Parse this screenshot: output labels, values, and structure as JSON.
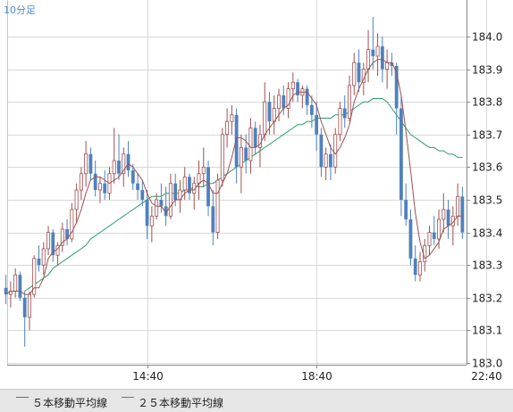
{
  "interval_label": "10分足",
  "legend": [
    {
      "label": "５本移動平均線",
      "color": "#a05050"
    },
    {
      "label": "２５本移動平均線",
      "color": "#2a9d6e"
    }
  ],
  "colors": {
    "up": "#a05050",
    "down": "#4f81bd",
    "grid": "#d8d8d8",
    "axis": "#888888",
    "text": "#222222",
    "ma5": "#a05050",
    "ma25": "#2a9d6e"
  },
  "chart_data": {
    "type": "candlestick",
    "ylim": [
      183.0,
      184.1
    ],
    "y_ticks": [
      "183.0",
      "183.1",
      "183.2",
      "183.3",
      "183.4",
      "183.5",
      "183.6",
      "183.7",
      "183.8",
      "183.9",
      "184.0"
    ],
    "x_ticks": [
      {
        "label": "14:40",
        "index": 30
      },
      {
        "label": "18:40",
        "index": 66
      },
      {
        "label": "22:40",
        "index": 102
      }
    ],
    "candles": [
      [
        183.23,
        183.27,
        183.18,
        183.21
      ],
      [
        183.21,
        183.25,
        183.17,
        183.22
      ],
      [
        183.22,
        183.29,
        183.2,
        183.27
      ],
      [
        183.27,
        183.28,
        183.19,
        183.2
      ],
      [
        183.2,
        183.22,
        183.05,
        183.14
      ],
      [
        183.14,
        183.22,
        183.1,
        183.21
      ],
      [
        183.21,
        183.33,
        183.2,
        183.32
      ],
      [
        183.32,
        183.36,
        183.28,
        183.3
      ],
      [
        183.3,
        183.37,
        183.27,
        183.35
      ],
      [
        183.35,
        183.42,
        183.33,
        183.4
      ],
      [
        183.4,
        183.41,
        183.31,
        183.33
      ],
      [
        183.33,
        183.37,
        183.3,
        183.36
      ],
      [
        183.36,
        183.43,
        183.34,
        183.41
      ],
      [
        183.41,
        183.44,
        183.36,
        183.38
      ],
      [
        183.38,
        183.49,
        183.37,
        183.47
      ],
      [
        183.47,
        183.55,
        183.43,
        183.53
      ],
      [
        183.53,
        183.6,
        183.5,
        183.58
      ],
      [
        183.58,
        183.68,
        183.54,
        183.64
      ],
      [
        183.64,
        183.66,
        183.56,
        183.58
      ],
      [
        183.58,
        183.62,
        183.51,
        183.53
      ],
      [
        183.53,
        183.57,
        183.49,
        183.55
      ],
      [
        183.55,
        183.59,
        183.5,
        183.52
      ],
      [
        183.52,
        183.6,
        183.5,
        183.58
      ],
      [
        183.58,
        183.72,
        183.55,
        183.62
      ],
      [
        183.62,
        183.7,
        183.56,
        183.58
      ],
      [
        183.58,
        183.66,
        183.54,
        183.64
      ],
      [
        183.64,
        183.68,
        183.57,
        183.59
      ],
      [
        183.59,
        183.61,
        183.53,
        183.55
      ],
      [
        183.55,
        183.58,
        183.5,
        183.53
      ],
      [
        183.53,
        183.56,
        183.48,
        183.5
      ],
      [
        183.5,
        183.53,
        183.38,
        183.42
      ],
      [
        183.42,
        183.48,
        183.37,
        183.45
      ],
      [
        183.45,
        183.52,
        183.44,
        183.5
      ],
      [
        183.5,
        183.55,
        183.46,
        183.48
      ],
      [
        183.48,
        183.54,
        183.42,
        183.45
      ],
      [
        183.45,
        183.58,
        183.44,
        183.55
      ],
      [
        183.55,
        183.58,
        183.48,
        183.5
      ],
      [
        183.5,
        183.56,
        183.46,
        183.53
      ],
      [
        183.53,
        183.6,
        183.5,
        183.57
      ],
      [
        183.57,
        183.58,
        183.5,
        183.52
      ],
      [
        183.52,
        183.57,
        183.47,
        183.55
      ],
      [
        183.55,
        183.62,
        183.5,
        183.58
      ],
      [
        183.58,
        183.66,
        183.54,
        183.6
      ],
      [
        183.6,
        183.62,
        183.45,
        183.48
      ],
      [
        183.48,
        183.53,
        183.36,
        183.4
      ],
      [
        183.4,
        183.58,
        183.38,
        183.56
      ],
      [
        183.56,
        183.72,
        183.54,
        183.7
      ],
      [
        183.7,
        183.78,
        183.66,
        183.74
      ],
      [
        183.74,
        183.79,
        183.7,
        183.76
      ],
      [
        183.76,
        183.78,
        183.55,
        183.6
      ],
      [
        183.6,
        183.7,
        183.52,
        183.66
      ],
      [
        183.66,
        183.7,
        183.58,
        183.62
      ],
      [
        183.62,
        183.75,
        183.58,
        183.72
      ],
      [
        183.72,
        183.74,
        183.64,
        183.66
      ],
      [
        183.66,
        183.73,
        183.6,
        183.7
      ],
      [
        183.7,
        183.86,
        183.68,
        183.8
      ],
      [
        183.8,
        183.83,
        183.7,
        183.74
      ],
      [
        183.74,
        183.82,
        183.7,
        183.78
      ],
      [
        183.78,
        183.84,
        183.74,
        183.82
      ],
      [
        183.82,
        183.85,
        183.76,
        183.78
      ],
      [
        183.78,
        183.86,
        183.75,
        183.84
      ],
      [
        183.84,
        183.89,
        183.8,
        183.86
      ],
      [
        183.86,
        183.87,
        183.8,
        183.82
      ],
      [
        183.82,
        183.85,
        183.78,
        183.84
      ],
      [
        183.84,
        183.85,
        183.76,
        183.79
      ],
      [
        183.79,
        183.82,
        183.72,
        183.76
      ],
      [
        183.76,
        183.8,
        183.65,
        183.7
      ],
      [
        183.7,
        183.72,
        183.57,
        183.6
      ],
      [
        183.6,
        183.66,
        183.56,
        183.64
      ],
      [
        183.64,
        183.67,
        183.56,
        183.6
      ],
      [
        183.6,
        183.72,
        183.58,
        183.7
      ],
      [
        183.7,
        183.8,
        183.68,
        183.78
      ],
      [
        183.78,
        183.82,
        183.72,
        183.75
      ],
      [
        183.75,
        183.88,
        183.74,
        183.85
      ],
      [
        183.85,
        183.95,
        183.82,
        183.92
      ],
      [
        183.92,
        183.96,
        183.83,
        183.86
      ],
      [
        183.86,
        183.92,
        183.82,
        183.9
      ],
      [
        183.9,
        184.02,
        183.86,
        183.96
      ],
      [
        183.96,
        184.06,
        183.9,
        183.94
      ],
      [
        183.94,
        184.01,
        183.88,
        183.97
      ],
      [
        183.97,
        184.0,
        183.86,
        183.9
      ],
      [
        183.9,
        183.96,
        183.84,
        183.92
      ],
      [
        183.92,
        183.95,
        183.88,
        183.91
      ],
      [
        183.91,
        183.92,
        183.7,
        183.78
      ],
      [
        183.78,
        183.82,
        183.45,
        183.5
      ],
      [
        183.5,
        183.55,
        183.42,
        183.44
      ],
      [
        183.44,
        183.47,
        183.3,
        183.32
      ],
      [
        183.32,
        183.36,
        183.25,
        183.27
      ],
      [
        183.27,
        183.34,
        183.25,
        183.31
      ],
      [
        183.31,
        183.38,
        183.28,
        183.36
      ],
      [
        183.36,
        183.42,
        183.33,
        183.4
      ],
      [
        183.4,
        183.45,
        183.36,
        183.38
      ],
      [
        183.38,
        183.47,
        183.35,
        183.44
      ],
      [
        183.44,
        183.52,
        183.4,
        183.47
      ],
      [
        183.47,
        183.5,
        183.38,
        183.42
      ],
      [
        183.42,
        183.48,
        183.36,
        183.45
      ],
      [
        183.45,
        183.55,
        183.42,
        183.51
      ],
      [
        183.51,
        183.54,
        183.38,
        183.4
      ]
    ],
    "ma5": [
      183.21,
      183.22,
      183.22,
      183.22,
      183.21,
      183.21,
      183.23,
      183.23,
      183.26,
      183.32,
      183.34,
      183.35,
      183.37,
      183.38,
      183.4,
      183.43,
      183.47,
      183.52,
      183.56,
      183.57,
      183.57,
      183.56,
      183.55,
      183.56,
      183.57,
      183.59,
      183.61,
      183.6,
      183.58,
      183.56,
      183.52,
      183.49,
      183.48,
      183.48,
      183.46,
      183.48,
      183.5,
      183.5,
      183.52,
      183.53,
      183.53,
      183.55,
      183.56,
      183.55,
      183.52,
      183.52,
      183.55,
      183.58,
      183.63,
      183.69,
      183.69,
      183.68,
      183.66,
      183.66,
      183.67,
      183.7,
      183.72,
      183.74,
      183.76,
      183.78,
      183.79,
      183.82,
      183.83,
      183.83,
      183.83,
      183.81,
      183.79,
      183.74,
      183.7,
      183.66,
      183.64,
      183.66,
      183.69,
      183.73,
      183.8,
      183.84,
      183.87,
      183.9,
      183.92,
      183.93,
      183.93,
      183.92,
      183.92,
      183.89,
      183.82,
      183.71,
      183.59,
      183.46,
      183.37,
      183.32,
      183.33,
      183.35,
      183.37,
      183.41,
      183.42,
      183.43,
      183.45,
      183.45
    ],
    "ma25_start": 4,
    "ma25": [
      183.22,
      183.23,
      183.24,
      183.25,
      183.26,
      183.27,
      183.29,
      183.3,
      183.31,
      183.32,
      183.33,
      183.34,
      183.35,
      183.36,
      183.38,
      183.39,
      183.4,
      183.41,
      183.42,
      183.43,
      183.44,
      183.45,
      183.46,
      183.47,
      183.48,
      183.49,
      183.5,
      183.51,
      183.51,
      183.51,
      183.52,
      183.52,
      183.52,
      183.52,
      183.53,
      183.53,
      183.54,
      183.54,
      183.54,
      183.55,
      183.55,
      183.56,
      183.57,
      183.58,
      183.59,
      183.6,
      183.61,
      183.62,
      183.63,
      183.64,
      183.65,
      183.66,
      183.67,
      183.68,
      183.69,
      183.7,
      183.71,
      183.72,
      183.73,
      183.73,
      183.74,
      183.74,
      183.75,
      183.75,
      183.75,
      183.75,
      183.76,
      183.76,
      183.76,
      183.77,
      183.78,
      183.79,
      183.8,
      183.8,
      183.81,
      183.81,
      183.81,
      183.8,
      183.78,
      183.76,
      183.74,
      183.72,
      183.7,
      183.69,
      183.68,
      183.67,
      183.66,
      183.66,
      183.65,
      183.65,
      183.64,
      183.64,
      183.63,
      183.63
    ]
  }
}
